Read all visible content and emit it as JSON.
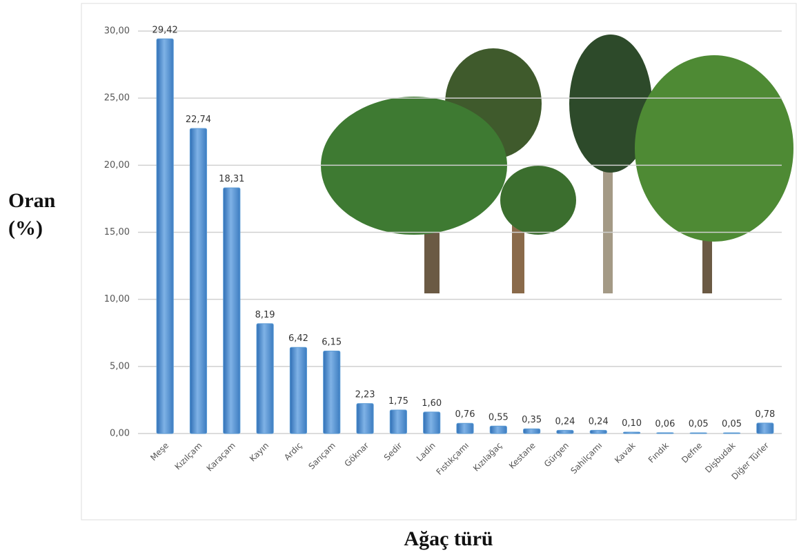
{
  "chart_data": {
    "type": "bar",
    "y_label_lines": [
      "Oran",
      "(%)"
    ],
    "x_label": "Ağaç türü",
    "categories": [
      "Meşe",
      "Kızılçam",
      "Karaçam",
      "Kayın",
      "Ardıç",
      "Sarıçam",
      "Göknar",
      "Sedir",
      "Ladin",
      "Fıstıkçamı",
      "Kızılağaç",
      "Kestane",
      "Gürgen",
      "Sahilçamı",
      "Kavak",
      "Fındık",
      "Defne",
      "Dişbudak",
      "Diğer Türler"
    ],
    "values": [
      29.42,
      22.74,
      18.31,
      8.19,
      6.42,
      6.15,
      2.23,
      1.75,
      1.6,
      0.76,
      0.55,
      0.35,
      0.24,
      0.24,
      0.1,
      0.06,
      0.05,
      0.05,
      0.78
    ],
    "value_labels": [
      "29,42",
      "22,74",
      "18,31",
      "8,19",
      "6,42",
      "6,15",
      "2,23",
      "1,75",
      "1,60",
      "0,76",
      "0,55",
      "0,35",
      "0,24",
      "0,24",
      "0,10",
      "0,06",
      "0,05",
      "0,05",
      "0,78"
    ],
    "color": "#5b9bd5",
    "ylim": [
      0,
      30
    ],
    "yticks": [
      {
        "value": 0,
        "label": "0,00"
      },
      {
        "value": 5,
        "label": "5,00"
      },
      {
        "value": 10,
        "label": "10,00"
      },
      {
        "value": 15,
        "label": "15,00"
      },
      {
        "value": 20,
        "label": "20,00"
      },
      {
        "value": 25,
        "label": "25,00"
      },
      {
        "value": 30,
        "label": "30,00"
      }
    ],
    "grid": true
  }
}
